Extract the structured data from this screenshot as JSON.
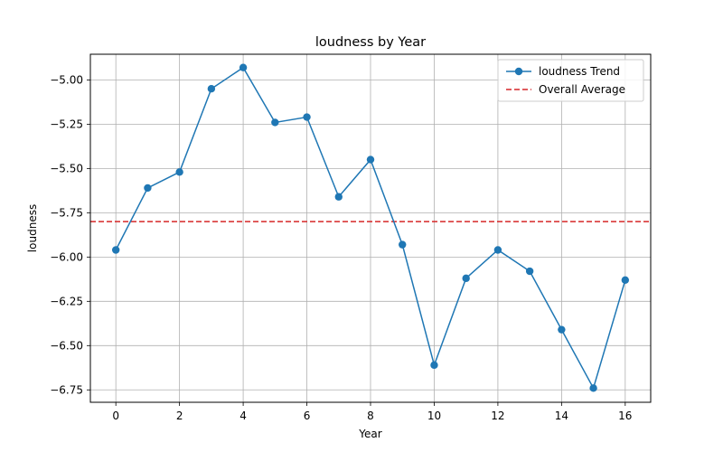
{
  "chart_data": {
    "type": "line",
    "title": "loudness by Year",
    "xlabel": "Year",
    "ylabel": "loudness",
    "xlim": [
      -0.8,
      16.8
    ],
    "ylim": [
      -6.82,
      -4.855
    ],
    "x_ticks": [
      0,
      2,
      4,
      6,
      8,
      10,
      12,
      14,
      16
    ],
    "y_ticks": [
      -5.0,
      -5.25,
      -5.5,
      -5.75,
      -6.0,
      -6.25,
      -6.5,
      -6.75
    ],
    "y_tick_labels": [
      "−5.00",
      "−5.25",
      "−5.50",
      "−5.75",
      "−6.00",
      "−6.25",
      "−6.50",
      "−6.75"
    ],
    "grid": true,
    "legend_position": "top-right",
    "series": [
      {
        "name": "loudness Trend",
        "color": "#1f77b4",
        "marker": "circle",
        "x": [
          0,
          1,
          2,
          3,
          4,
          5,
          6,
          7,
          8,
          9,
          10,
          11,
          12,
          13,
          14,
          15,
          16
        ],
        "y": [
          -5.96,
          -5.61,
          -5.52,
          -5.05,
          -4.93,
          -5.24,
          -5.21,
          -5.66,
          -5.45,
          -5.93,
          -6.61,
          -6.12,
          -5.96,
          -6.08,
          -6.41,
          -6.74,
          -6.13
        ]
      }
    ],
    "reference_lines": [
      {
        "name": "Overall Average",
        "color": "#d62728",
        "style": "dashed",
        "y": -5.8
      }
    ]
  }
}
